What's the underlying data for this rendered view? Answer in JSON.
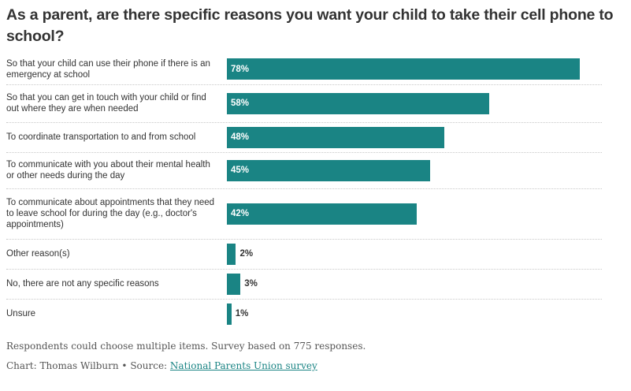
{
  "title": "As a parent, are there specific reasons you want your child to take their cell phone to school?",
  "colors": {
    "bar": "#1a8484",
    "text": "#333333",
    "muted": "#555555",
    "link": "#1a8484"
  },
  "chart_data": {
    "type": "bar",
    "orientation": "horizontal",
    "title": "As a parent, are there specific reasons you want your child to take their cell phone to school?",
    "categories": [
      "So that your child can use their phone if there is an emergency at school",
      "So that you can get in touch with your child or find out where they are when needed",
      "To coordinate transportation to and from school",
      "To communicate with you about their mental health or other needs during the day",
      "To communicate about appointments that they need to leave school for during the day (e.g., doctor's appointments)",
      "Other reason(s)",
      "No, there are not any specific reasons",
      "Unsure"
    ],
    "values": [
      78,
      58,
      48,
      45,
      42,
      2,
      3,
      1
    ],
    "value_labels": [
      "78%",
      "58%",
      "48%",
      "45%",
      "42%",
      "2%",
      "3%",
      "1%"
    ],
    "xlim": [
      0,
      78
    ],
    "grid": false,
    "legend": "none"
  },
  "footer": {
    "note": "Respondents could choose multiple items. Survey based on 775 responses.",
    "credit_prefix": "Chart: Thomas Wilburn • Source: ",
    "source_link": "National Parents Union survey"
  }
}
